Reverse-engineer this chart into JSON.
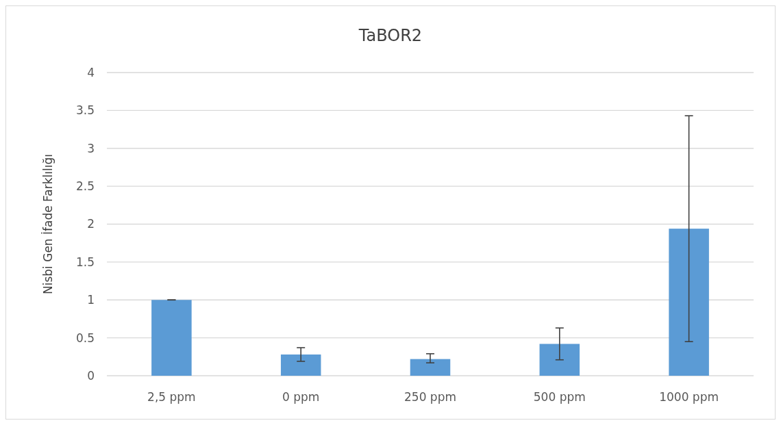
{
  "chart_data": {
    "type": "bar",
    "title": "TaBOR2",
    "ylabel": "Nisbi Gen İfade Farklılığı",
    "categories": [
      "2,5 ppm",
      "0 ppm",
      "250 ppm",
      "500 ppm",
      "1000 ppm"
    ],
    "values": [
      1.0,
      0.28,
      0.22,
      0.42,
      1.94
    ],
    "errors": [
      [
        1.0,
        1.0
      ],
      [
        0.19,
        0.37
      ],
      [
        0.17,
        0.29
      ],
      [
        0.21,
        0.63
      ],
      [
        0.45,
        3.43
      ]
    ],
    "color": "#5b9bd5",
    "ylim": [
      0,
      4
    ],
    "yticks": [
      0,
      0.5,
      1,
      1.5,
      2,
      2.5,
      3,
      3.5,
      4
    ],
    "grid": "y"
  }
}
